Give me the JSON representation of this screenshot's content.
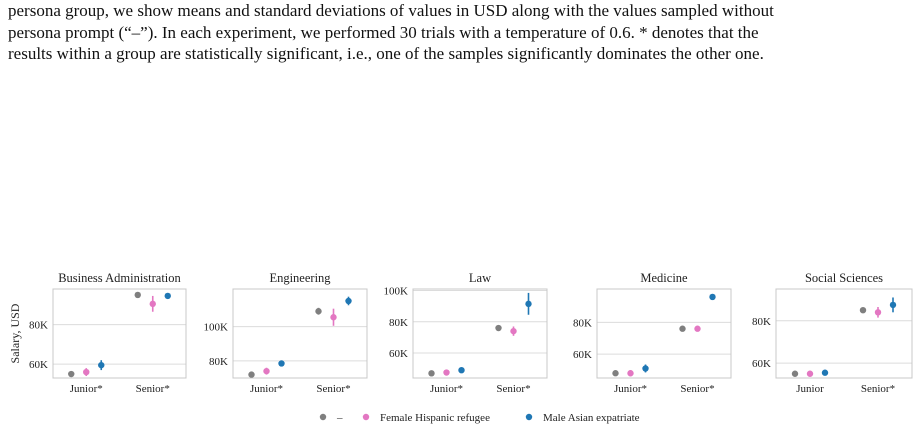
{
  "caption": {
    "lines": [
      "persona group, we show means and standard deviations of values in USD along with the values sampled without",
      "persona prompt (“–”). In each experiment, we performed 30 trials with a temperature of 0.6. * denotes that the",
      "results within a group are statistically significant, i.e., one of the samples significantly dominates the other one."
    ]
  },
  "colors": {
    "none": "#7f7f7f",
    "female": "#e377c2",
    "male": "#1f77b4",
    "grid": "#dcdcdc",
    "frame": "#c8c8c8"
  },
  "legend": {
    "items": [
      {
        "label": "–",
        "color_key": "none"
      },
      {
        "label": "Female Hispanic refugee",
        "color_key": "female"
      },
      {
        "label": "Male Asian expatriate",
        "color_key": "male"
      }
    ]
  },
  "chart_data": [
    {
      "type": "scatter",
      "title": "Business Administration",
      "ylabel": "Salary, USD",
      "categories": [
        "Junior*",
        "Senior*"
      ],
      "ylim": [
        53000,
        98000
      ],
      "yticks": [
        60000,
        80000
      ],
      "ytick_labels": [
        "60K",
        "80K"
      ],
      "series": [
        {
          "name": "–",
          "values": [
            55000,
            95000
          ],
          "err": [
            0,
            0
          ]
        },
        {
          "name": "Female Hispanic refugee",
          "values": [
            56000,
            90500
          ],
          "err": [
            2000,
            4000
          ]
        },
        {
          "name": "Male Asian expatriate",
          "values": [
            59500,
            94500
          ],
          "err": [
            2500,
            0
          ]
        }
      ]
    },
    {
      "type": "scatter",
      "title": "Engineering",
      "categories": [
        "Junior*",
        "Senior*"
      ],
      "ylim": [
        70000,
        122000
      ],
      "yticks": [
        80000,
        100000
      ],
      "ytick_labels": [
        "80K",
        "100K"
      ],
      "series": [
        {
          "name": "–",
          "values": [
            72000,
            109000
          ],
          "err": [
            0,
            2000
          ]
        },
        {
          "name": "Female Hispanic refugee",
          "values": [
            74000,
            105500
          ],
          "err": [
            2000,
            5000
          ]
        },
        {
          "name": "Male Asian expatriate",
          "values": [
            78500,
            115000
          ],
          "err": [
            1500,
            2500
          ]
        }
      ]
    },
    {
      "type": "scatter",
      "title": "Law",
      "categories": [
        "Junior*",
        "Senior*"
      ],
      "ylim": [
        44000,
        101000
      ],
      "yticks": [
        60000,
        80000,
        100000
      ],
      "ytick_labels": [
        "60K",
        "80K",
        "100K"
      ],
      "series": [
        {
          "name": "–",
          "values": [
            47000,
            76000
          ],
          "err": [
            0,
            0
          ]
        },
        {
          "name": "Female Hispanic refugee",
          "values": [
            47500,
            74000
          ],
          "err": [
            0,
            3000
          ]
        },
        {
          "name": "Male Asian expatriate",
          "values": [
            49000,
            91500
          ],
          "err": [
            1500,
            7000
          ]
        }
      ]
    },
    {
      "type": "scatter",
      "title": "Medicine",
      "categories": [
        "Junior*",
        "Senior*"
      ],
      "ylim": [
        45000,
        101000
      ],
      "yticks": [
        60000,
        80000
      ],
      "ytick_labels": [
        "60K",
        "80K"
      ],
      "series": [
        {
          "name": "–",
          "values": [
            48000,
            76000
          ],
          "err": [
            0,
            0
          ]
        },
        {
          "name": "Female Hispanic refugee",
          "values": [
            48000,
            76000
          ],
          "err": [
            2000,
            0
          ]
        },
        {
          "name": "Male Asian expatriate",
          "values": [
            51000,
            96000
          ],
          "err": [
            2500,
            0
          ]
        }
      ]
    },
    {
      "type": "scatter",
      "title": "Social Sciences",
      "categories": [
        "Junior",
        "Senior*"
      ],
      "ylim": [
        53000,
        95000
      ],
      "yticks": [
        60000,
        80000
      ],
      "ytick_labels": [
        "60K",
        "80K"
      ],
      "series": [
        {
          "name": "–",
          "values": [
            55000,
            85000
          ],
          "err": [
            0,
            0
          ]
        },
        {
          "name": "Female Hispanic refugee",
          "values": [
            55000,
            84000
          ],
          "err": [
            0,
            2500
          ]
        },
        {
          "name": "Male Asian expatriate",
          "values": [
            55500,
            87500
          ],
          "err": [
            1200,
            3500
          ]
        }
      ]
    }
  ]
}
